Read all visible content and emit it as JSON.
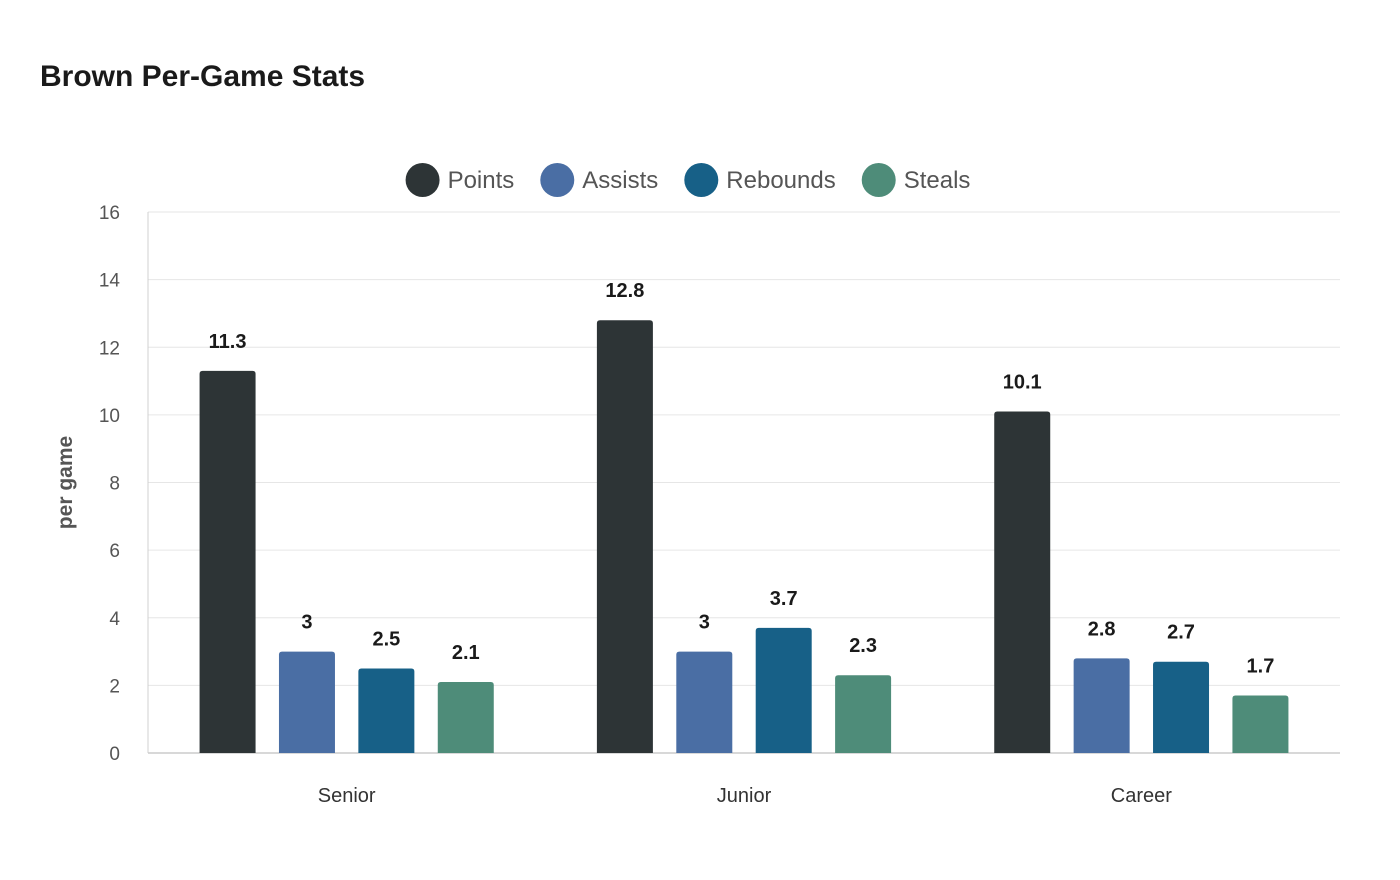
{
  "chart_data": {
    "type": "bar",
    "title": "Brown Per-Game Stats",
    "xlabel": "",
    "ylabel": "per game",
    "ylim": [
      0,
      16
    ],
    "yticks": [
      0,
      2,
      4,
      6,
      8,
      10,
      12,
      14,
      16
    ],
    "grid": true,
    "legend_position": "top-center",
    "categories": [
      "Senior",
      "Junior",
      "Career"
    ],
    "series": [
      {
        "name": "Points",
        "color": "#2d3436",
        "values": [
          11.3,
          12.8,
          10.1
        ],
        "labels": [
          "11.3",
          "12.8",
          "10.1"
        ]
      },
      {
        "name": "Assists",
        "color": "#4a6ea4",
        "values": [
          3,
          3,
          2.8
        ],
        "labels": [
          "3",
          "3",
          "2.8"
        ]
      },
      {
        "name": "Rebounds",
        "color": "#176087",
        "values": [
          2.5,
          3.7,
          2.7
        ],
        "labels": [
          "2.5",
          "3.7",
          "2.7"
        ]
      },
      {
        "name": "Steals",
        "color": "#4e8c79",
        "values": [
          2.1,
          2.3,
          1.7
        ],
        "labels": [
          "2.1",
          "2.3",
          "1.7"
        ]
      }
    ]
  }
}
